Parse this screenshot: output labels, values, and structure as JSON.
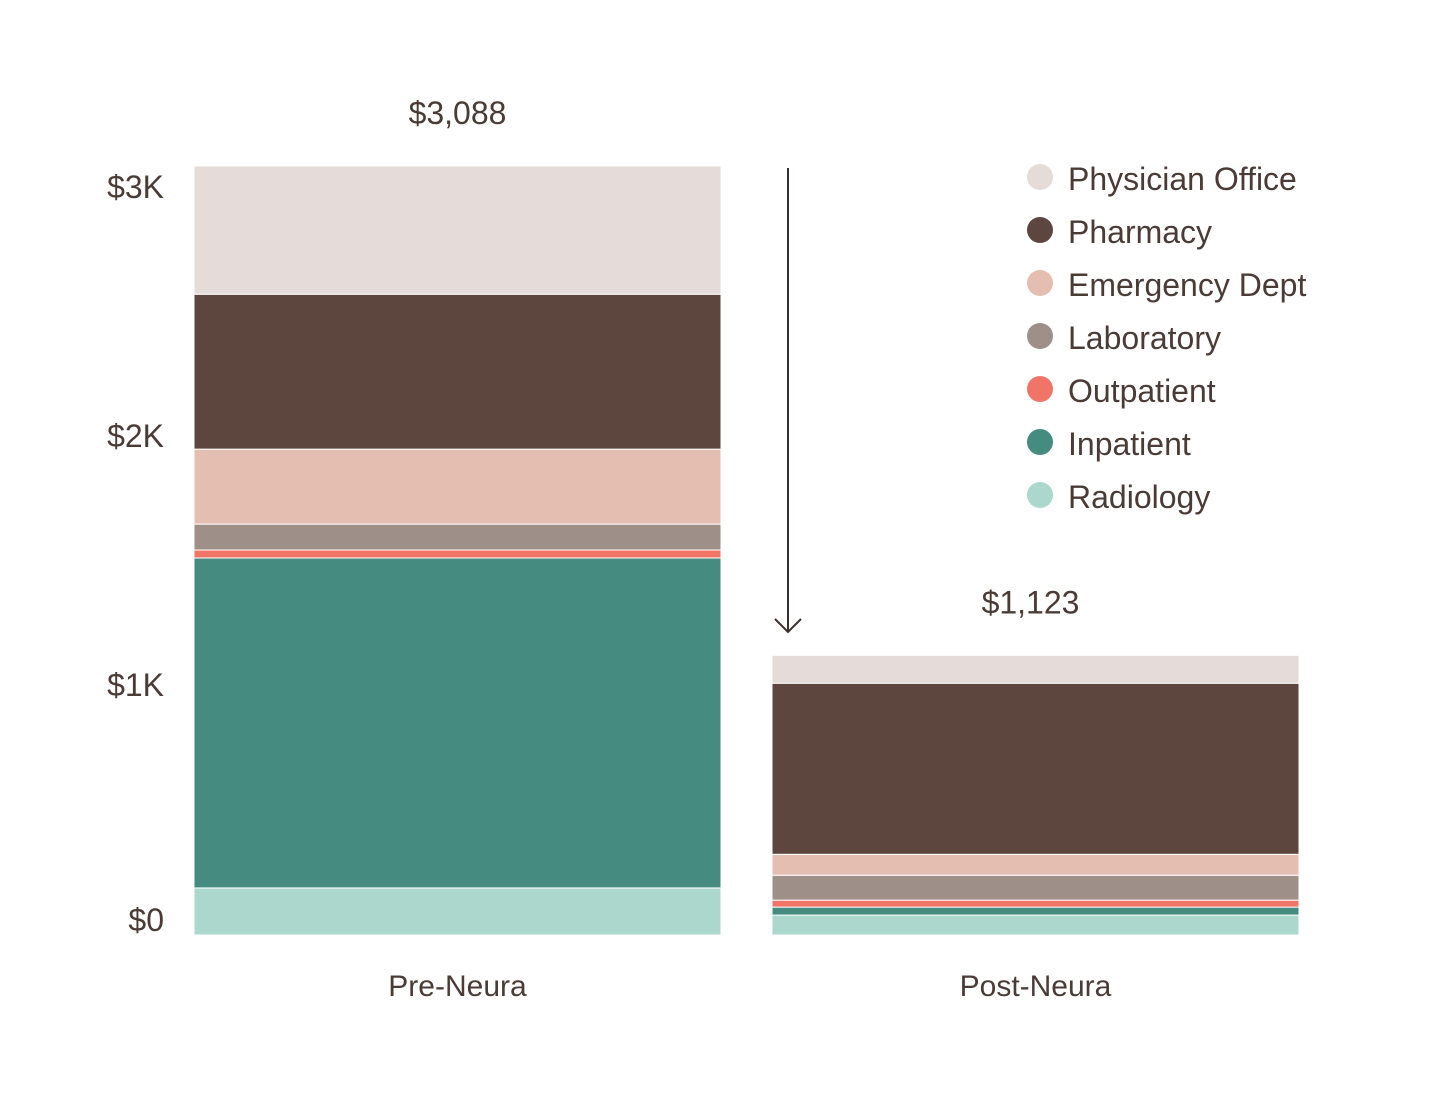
{
  "chart_data": {
    "type": "bar",
    "stacked": true,
    "title": "",
    "xlabel": "",
    "ylabel": "",
    "ylim": [
      0,
      3088
    ],
    "grid": false,
    "legend_position": "top-right",
    "categories": [
      "Pre-Neura",
      "Post-Neura"
    ],
    "totals": [
      3088,
      1123
    ],
    "total_labels": [
      "$3,088",
      "$1,123"
    ],
    "y_ticks": [
      {
        "value": 0,
        "label": "$0"
      },
      {
        "value": 1000,
        "label": "$1K"
      },
      {
        "value": 2000,
        "label": "$2K"
      },
      {
        "value": 3000,
        "label": "$3K"
      }
    ],
    "series": [
      {
        "name": "Radiology",
        "color": "#acd7cd",
        "values": [
          189,
          80
        ]
      },
      {
        "name": "Inpatient",
        "color": "#468b7f",
        "values": [
          1325,
          32
        ]
      },
      {
        "name": "Outpatient",
        "color": "#f07567",
        "values": [
          32,
          28
        ]
      },
      {
        "name": "Laboratory",
        "color": "#9f8f89",
        "values": [
          104,
          100
        ]
      },
      {
        "name": "Emergency Dept",
        "color": "#e4beb1",
        "values": [
          301,
          84
        ]
      },
      {
        "name": "Pharmacy",
        "color": "#5c463e",
        "values": [
          622,
          687
        ]
      },
      {
        "name": "Physician Office",
        "color": "#e5dbd9",
        "values": [
          515,
          112
        ]
      }
    ],
    "legend_order": [
      "Physician Office",
      "Pharmacy",
      "Emergency Dept",
      "Laboratory",
      "Outpatient",
      "Inpatient",
      "Radiology"
    ],
    "annotation": "arrow-down"
  }
}
